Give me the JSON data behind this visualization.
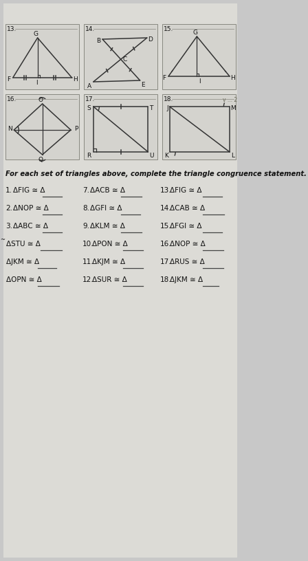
{
  "bg_color": "#c8c8c8",
  "paper_color": "#dcdbd6",
  "box_color": "#d4d3ce",
  "box_edge": "#888880",
  "line_color": "#333333",
  "text_color": "#111111",
  "ul_color": "#444444",
  "instruction": "For each set of triangles above, complete the triangle congruence statement.",
  "col1_items": [
    [
      "1.",
      "ΔFIG ≅ Δ",
      true
    ],
    [
      "2.",
      "ΔNOP ≅ Δ",
      true
    ],
    [
      "3.",
      "ΔABC ≅ Δ",
      true
    ],
    [
      "~ΔSTU ≅ Δ",
      "",
      true
    ],
    [
      "ΔJKM ≅ Δ",
      "",
      true
    ],
    [
      "ΔOPN ≅ Δ",
      "",
      true
    ]
  ],
  "col2_items": [
    [
      "7.",
      "ΔACB ≅ Δ",
      true
    ],
    [
      "8.",
      "ΔGFI ≅ Δ",
      true
    ],
    [
      "9.",
      "ΔKLM ≅ Δ",
      true
    ],
    [
      "10.",
      "ΔPON ≅ Δ",
      true
    ],
    [
      "11.",
      "ΔKJM ≅ Δ",
      true
    ],
    [
      "12.",
      "ΔSUR ≅ Δ",
      true
    ]
  ],
  "col3_items": [
    [
      "13.",
      "ΔFIG ≅ Δ",
      true
    ],
    [
      "14.",
      "ΔCAB ≅ Δ",
      true
    ],
    [
      "15.",
      "ΔFGI ≅ Δ",
      true
    ],
    [
      "16.",
      "ΔNOP ≅ Δ",
      true
    ],
    [
      "17.",
      "ΔRUS ≅ Δ",
      true
    ],
    [
      "18.",
      "ΔJKM ≅ Δ",
      true
    ]
  ]
}
